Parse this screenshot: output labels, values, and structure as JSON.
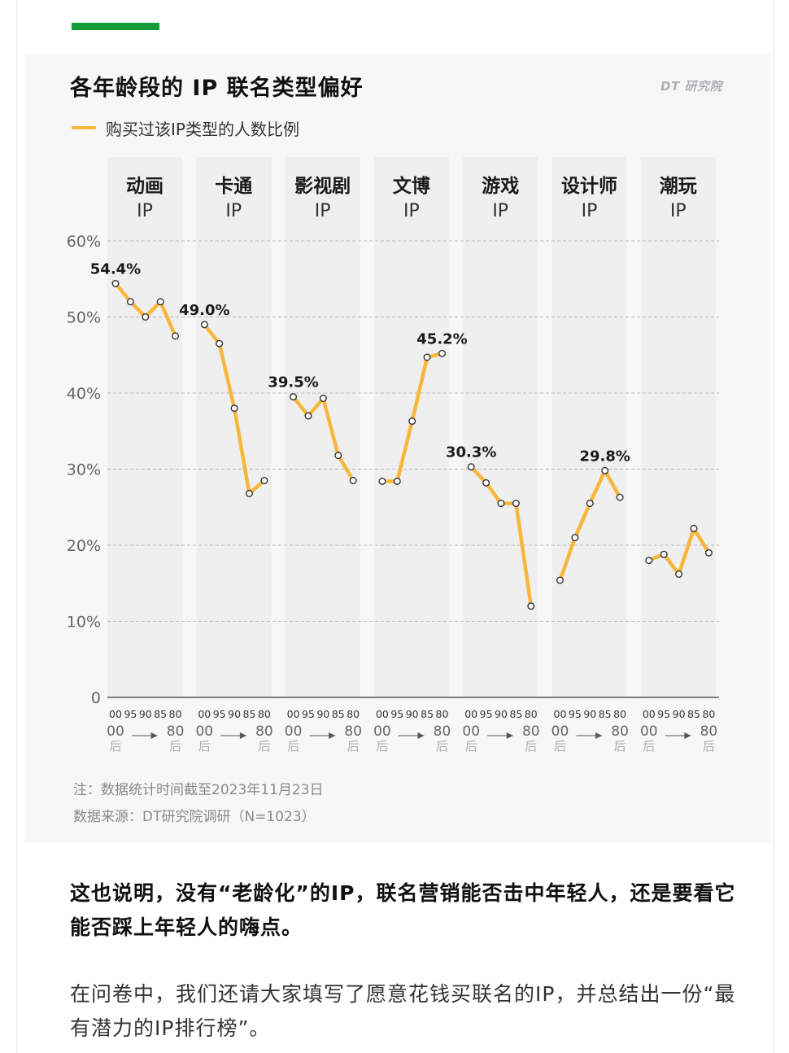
{
  "article": {
    "paragraph1": "这也说明，没有“老龄化”的IP，联名营销能否击中年轻人，还是要看它能否踩上年轻人的嗨点。",
    "paragraph2": "在问卷中，我们还请大家填写了愿意花钱买联名的IP，并总结出一份“最有潜力的IP排行榜”。"
  },
  "card": {
    "title": "各年龄段的 IP 联名类型偏好",
    "brand": "DT 研究院",
    "note": "注：数据统计时间截至2023年11月23日",
    "source": "数据来源：DT研究院调研（N=1023）"
  },
  "colors": {
    "accent_green": "#139b3a",
    "line": "#f8b63b",
    "panel": "#efefef"
  },
  "chart_data": {
    "type": "line",
    "title": "各年龄段的 IP 联名类型偏好",
    "legend": [
      "购买过该IP类型的人数比例"
    ],
    "legend_placement": "top-left",
    "ylim": [
      0,
      60
    ],
    "yticks": [
      0,
      10,
      20,
      30,
      40,
      50,
      60
    ],
    "ytick_labels": [
      "0",
      "10%",
      "20%",
      "30%",
      "40%",
      "50%",
      "60%"
    ],
    "grid": true,
    "x_groups": [
      "00",
      "95",
      "90",
      "85",
      "80"
    ],
    "x_from": [
      "00",
      "后"
    ],
    "x_to": [
      "80",
      "后"
    ],
    "series": [
      {
        "name": "动画IP",
        "label_lines": [
          "动画",
          "IP"
        ],
        "values": [
          54.4,
          52.0,
          50.0,
          52.0,
          47.5
        ],
        "highlight": "54.4%",
        "highlight_index": 0
      },
      {
        "name": "卡通IP",
        "label_lines": [
          "卡通",
          "IP"
        ],
        "values": [
          49.0,
          46.5,
          38.0,
          26.8,
          28.5
        ],
        "highlight": "49.0%",
        "highlight_index": 0
      },
      {
        "name": "影视剧IP",
        "label_lines": [
          "影视剧",
          "IP"
        ],
        "values": [
          39.5,
          37.0,
          39.3,
          31.8,
          28.5
        ],
        "highlight": "39.5%",
        "highlight_index": 0
      },
      {
        "name": "文博IP",
        "label_lines": [
          "文博",
          "IP"
        ],
        "values": [
          28.4,
          28.4,
          36.3,
          44.7,
          45.2
        ],
        "highlight": "45.2%",
        "highlight_index": 4
      },
      {
        "name": "游戏IP",
        "label_lines": [
          "游戏",
          "IP"
        ],
        "values": [
          30.3,
          28.2,
          25.5,
          25.5,
          12.0
        ],
        "highlight": "30.3%",
        "highlight_index": 0
      },
      {
        "name": "设计师IP",
        "label_lines": [
          "设计师",
          "IP"
        ],
        "values": [
          15.4,
          21.0,
          25.5,
          29.8,
          26.3
        ],
        "highlight": "29.8%",
        "highlight_index": 3
      },
      {
        "name": "潮玩IP",
        "label_lines": [
          "潮玩",
          "IP"
        ],
        "values": [
          18.0,
          18.8,
          16.2,
          22.2,
          19.0
        ],
        "highlight": "",
        "highlight_index": -1
      }
    ]
  }
}
